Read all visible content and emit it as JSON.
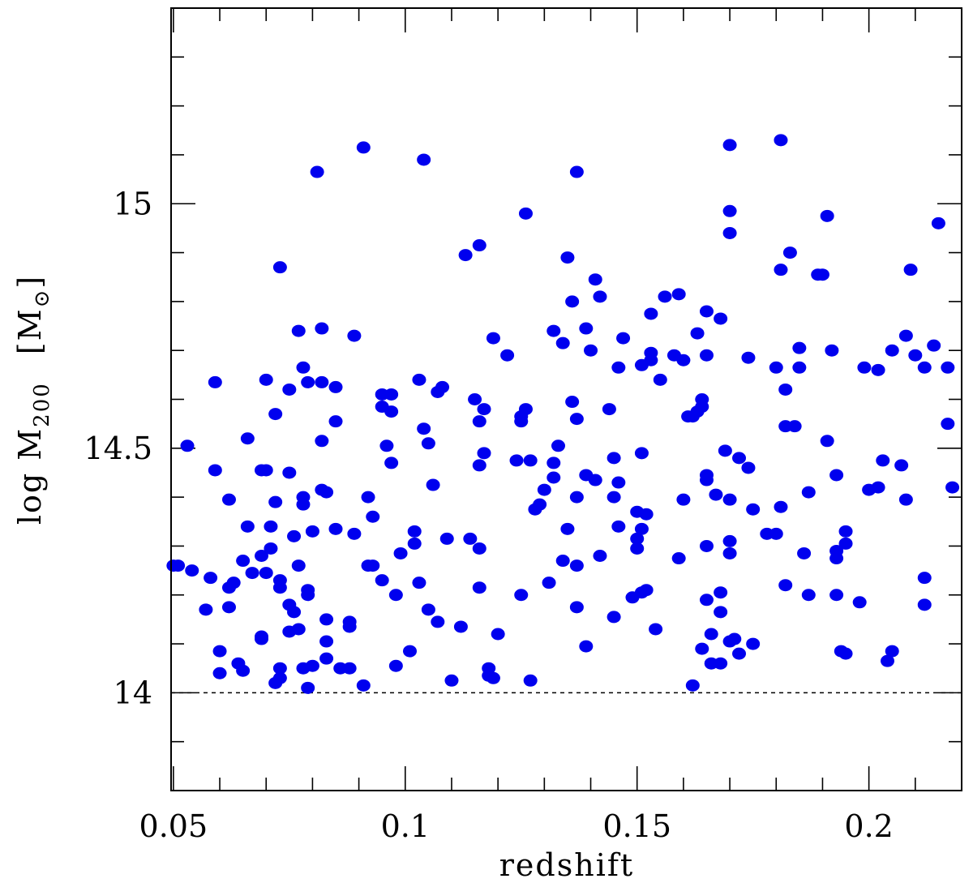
{
  "chart_data": {
    "type": "scatter",
    "xlabel": "redshift",
    "ylabel": {
      "prefix": "log  M",
      "subscript": "200",
      "unit_open": "[M",
      "unit_subscript": "⊙",
      "unit_close": "]"
    },
    "xlim": [
      0.0495,
      0.22
    ],
    "ylim": [
      13.8,
      15.4
    ],
    "x_ticks_major": [
      0.05,
      0.1,
      0.15,
      0.2
    ],
    "x_tick_labels": [
      "0.05",
      "0.1",
      "0.15",
      "0.2"
    ],
    "x_ticks_minor_step": 0.01,
    "y_ticks_major": [
      14.0,
      14.5,
      15.0
    ],
    "y_tick_labels": [
      "14",
      "14.5",
      "15"
    ],
    "y_ticks_minor_step": 0.1,
    "reference_line_y": 14.0,
    "point_color": "#0000ee",
    "points": [
      [
        0.05,
        14.26
      ],
      [
        0.051,
        14.26
      ],
      [
        0.053,
        14.505
      ],
      [
        0.054,
        14.25
      ],
      [
        0.057,
        14.17
      ],
      [
        0.058,
        14.235
      ],
      [
        0.059,
        14.635
      ],
      [
        0.059,
        14.455
      ],
      [
        0.06,
        14.085
      ],
      [
        0.06,
        14.04
      ],
      [
        0.062,
        14.395
      ],
      [
        0.062,
        14.175
      ],
      [
        0.062,
        14.215
      ],
      [
        0.063,
        14.225
      ],
      [
        0.064,
        14.06
      ],
      [
        0.065,
        14.045
      ],
      [
        0.065,
        14.27
      ],
      [
        0.066,
        14.52
      ],
      [
        0.066,
        14.34
      ],
      [
        0.067,
        14.245
      ],
      [
        0.069,
        14.11
      ],
      [
        0.069,
        14.115
      ],
      [
        0.069,
        14.455
      ],
      [
        0.069,
        14.28
      ],
      [
        0.07,
        14.245
      ],
      [
        0.07,
        14.455
      ],
      [
        0.07,
        14.64
      ],
      [
        0.071,
        14.295
      ],
      [
        0.071,
        14.34
      ],
      [
        0.072,
        14.57
      ],
      [
        0.072,
        14.39
      ],
      [
        0.072,
        14.02
      ],
      [
        0.073,
        14.03
      ],
      [
        0.073,
        14.05
      ],
      [
        0.073,
        14.23
      ],
      [
        0.073,
        14.215
      ],
      [
        0.073,
        14.87
      ],
      [
        0.075,
        14.18
      ],
      [
        0.075,
        14.125
      ],
      [
        0.075,
        14.45
      ],
      [
        0.075,
        14.62
      ],
      [
        0.076,
        14.165
      ],
      [
        0.076,
        14.32
      ],
      [
        0.077,
        14.26
      ],
      [
        0.077,
        14.13
      ],
      [
        0.077,
        14.74
      ],
      [
        0.078,
        14.05
      ],
      [
        0.078,
        14.385
      ],
      [
        0.078,
        14.665
      ],
      [
        0.078,
        14.4
      ],
      [
        0.079,
        14.21
      ],
      [
        0.079,
        14.635
      ],
      [
        0.079,
        14.01
      ],
      [
        0.079,
        14.2
      ],
      [
        0.08,
        14.055
      ],
      [
        0.08,
        14.33
      ],
      [
        0.081,
        15.065
      ],
      [
        0.082,
        14.515
      ],
      [
        0.082,
        14.415
      ],
      [
        0.082,
        14.745
      ],
      [
        0.082,
        14.635
      ],
      [
        0.083,
        14.41
      ],
      [
        0.083,
        14.15
      ],
      [
        0.083,
        14.105
      ],
      [
        0.083,
        14.07
      ],
      [
        0.085,
        14.625
      ],
      [
        0.085,
        14.555
      ],
      [
        0.085,
        14.335
      ],
      [
        0.086,
        14.05
      ],
      [
        0.088,
        14.145
      ],
      [
        0.088,
        14.135
      ],
      [
        0.088,
        14.05
      ],
      [
        0.089,
        14.325
      ],
      [
        0.089,
        14.73
      ],
      [
        0.091,
        15.115
      ],
      [
        0.091,
        14.015
      ],
      [
        0.092,
        14.26
      ],
      [
        0.092,
        14.4
      ],
      [
        0.093,
        14.36
      ],
      [
        0.093,
        14.26
      ],
      [
        0.095,
        14.23
      ],
      [
        0.095,
        14.61
      ],
      [
        0.095,
        14.585
      ],
      [
        0.096,
        14.505
      ],
      [
        0.097,
        14.575
      ],
      [
        0.097,
        14.47
      ],
      [
        0.097,
        14.61
      ],
      [
        0.098,
        14.2
      ],
      [
        0.098,
        14.055
      ],
      [
        0.099,
        14.285
      ],
      [
        0.101,
        14.085
      ],
      [
        0.102,
        14.33
      ],
      [
        0.102,
        14.305
      ],
      [
        0.103,
        14.225
      ],
      [
        0.103,
        14.64
      ],
      [
        0.104,
        15.09
      ],
      [
        0.104,
        14.54
      ],
      [
        0.105,
        14.51
      ],
      [
        0.105,
        14.17
      ],
      [
        0.106,
        14.425
      ],
      [
        0.107,
        14.145
      ],
      [
        0.107,
        14.615
      ],
      [
        0.108,
        14.625
      ],
      [
        0.109,
        14.315
      ],
      [
        0.11,
        14.025
      ],
      [
        0.112,
        14.135
      ],
      [
        0.113,
        14.895
      ],
      [
        0.114,
        14.315
      ],
      [
        0.115,
        14.6
      ],
      [
        0.116,
        14.915
      ],
      [
        0.116,
        14.555
      ],
      [
        0.116,
        14.465
      ],
      [
        0.116,
        14.295
      ],
      [
        0.116,
        14.215
      ],
      [
        0.117,
        14.58
      ],
      [
        0.117,
        14.49
      ],
      [
        0.118,
        14.05
      ],
      [
        0.118,
        14.035
      ],
      [
        0.119,
        14.03
      ],
      [
        0.119,
        14.725
      ],
      [
        0.12,
        14.12
      ],
      [
        0.122,
        14.69
      ],
      [
        0.124,
        14.475
      ],
      [
        0.125,
        14.565
      ],
      [
        0.125,
        14.555
      ],
      [
        0.125,
        14.2
      ],
      [
        0.126,
        14.98
      ],
      [
        0.126,
        14.58
      ],
      [
        0.127,
        14.475
      ],
      [
        0.127,
        14.025
      ],
      [
        0.128,
        14.375
      ],
      [
        0.129,
        14.385
      ],
      [
        0.13,
        14.415
      ],
      [
        0.131,
        14.225
      ],
      [
        0.132,
        14.74
      ],
      [
        0.132,
        14.47
      ],
      [
        0.132,
        14.44
      ],
      [
        0.133,
        14.505
      ],
      [
        0.134,
        14.715
      ],
      [
        0.134,
        14.27
      ],
      [
        0.135,
        14.89
      ],
      [
        0.135,
        14.335
      ],
      [
        0.136,
        14.8
      ],
      [
        0.136,
        14.595
      ],
      [
        0.137,
        15.065
      ],
      [
        0.137,
        14.56
      ],
      [
        0.137,
        14.4
      ],
      [
        0.137,
        14.26
      ],
      [
        0.137,
        14.175
      ],
      [
        0.139,
        14.745
      ],
      [
        0.139,
        14.445
      ],
      [
        0.139,
        14.095
      ],
      [
        0.14,
        14.7
      ],
      [
        0.141,
        14.845
      ],
      [
        0.141,
        14.435
      ],
      [
        0.142,
        14.81
      ],
      [
        0.142,
        14.28
      ],
      [
        0.144,
        14.58
      ],
      [
        0.145,
        14.48
      ],
      [
        0.145,
        14.4
      ],
      [
        0.145,
        14.155
      ],
      [
        0.146,
        14.665
      ],
      [
        0.146,
        14.43
      ],
      [
        0.146,
        14.34
      ],
      [
        0.147,
        14.725
      ],
      [
        0.149,
        14.195
      ],
      [
        0.15,
        14.37
      ],
      [
        0.15,
        14.315
      ],
      [
        0.15,
        14.295
      ],
      [
        0.151,
        14.67
      ],
      [
        0.151,
        14.49
      ],
      [
        0.151,
        14.335
      ],
      [
        0.151,
        14.205
      ],
      [
        0.152,
        14.365
      ],
      [
        0.152,
        14.21
      ],
      [
        0.153,
        14.775
      ],
      [
        0.153,
        14.695
      ],
      [
        0.153,
        14.68
      ],
      [
        0.154,
        14.13
      ],
      [
        0.155,
        14.64
      ],
      [
        0.156,
        14.81
      ],
      [
        0.158,
        14.69
      ],
      [
        0.159,
        14.815
      ],
      [
        0.159,
        14.275
      ],
      [
        0.16,
        14.68
      ],
      [
        0.16,
        14.395
      ],
      [
        0.161,
        14.565
      ],
      [
        0.162,
        14.565
      ],
      [
        0.162,
        14.015
      ],
      [
        0.163,
        14.575
      ],
      [
        0.163,
        14.735
      ],
      [
        0.164,
        14.6
      ],
      [
        0.164,
        14.585
      ],
      [
        0.164,
        14.09
      ],
      [
        0.165,
        14.78
      ],
      [
        0.165,
        14.69
      ],
      [
        0.165,
        14.445
      ],
      [
        0.165,
        14.435
      ],
      [
        0.165,
        14.3
      ],
      [
        0.165,
        14.19
      ],
      [
        0.166,
        14.12
      ],
      [
        0.166,
        14.06
      ],
      [
        0.167,
        14.405
      ],
      [
        0.168,
        14.765
      ],
      [
        0.168,
        14.205
      ],
      [
        0.168,
        14.165
      ],
      [
        0.168,
        14.06
      ],
      [
        0.169,
        14.495
      ],
      [
        0.17,
        15.12
      ],
      [
        0.17,
        14.985
      ],
      [
        0.17,
        14.94
      ],
      [
        0.17,
        14.395
      ],
      [
        0.17,
        14.31
      ],
      [
        0.17,
        14.285
      ],
      [
        0.17,
        14.105
      ],
      [
        0.171,
        14.11
      ],
      [
        0.172,
        14.48
      ],
      [
        0.172,
        14.08
      ],
      [
        0.174,
        14.685
      ],
      [
        0.174,
        14.46
      ],
      [
        0.175,
        14.375
      ],
      [
        0.175,
        14.1
      ],
      [
        0.178,
        14.325
      ],
      [
        0.18,
        14.665
      ],
      [
        0.18,
        14.325
      ],
      [
        0.181,
        15.13
      ],
      [
        0.181,
        14.865
      ],
      [
        0.181,
        14.38
      ],
      [
        0.182,
        14.62
      ],
      [
        0.182,
        14.545
      ],
      [
        0.182,
        14.22
      ],
      [
        0.183,
        14.9
      ],
      [
        0.184,
        14.545
      ],
      [
        0.185,
        14.705
      ],
      [
        0.185,
        14.665
      ],
      [
        0.186,
        14.285
      ],
      [
        0.187,
        14.41
      ],
      [
        0.187,
        14.2
      ],
      [
        0.189,
        14.855
      ],
      [
        0.19,
        14.855
      ],
      [
        0.191,
        14.975
      ],
      [
        0.191,
        14.515
      ],
      [
        0.192,
        14.7
      ],
      [
        0.193,
        14.445
      ],
      [
        0.193,
        14.29
      ],
      [
        0.193,
        14.275
      ],
      [
        0.193,
        14.2
      ],
      [
        0.194,
        14.085
      ],
      [
        0.195,
        14.08
      ],
      [
        0.195,
        14.33
      ],
      [
        0.195,
        14.305
      ],
      [
        0.198,
        14.185
      ],
      [
        0.199,
        14.665
      ],
      [
        0.2,
        14.415
      ],
      [
        0.202,
        14.66
      ],
      [
        0.202,
        14.42
      ],
      [
        0.203,
        14.475
      ],
      [
        0.204,
        14.065
      ],
      [
        0.205,
        14.085
      ],
      [
        0.205,
        14.7
      ],
      [
        0.207,
        14.465
      ],
      [
        0.208,
        14.73
      ],
      [
        0.208,
        14.395
      ],
      [
        0.209,
        14.865
      ],
      [
        0.21,
        14.69
      ],
      [
        0.212,
        14.665
      ],
      [
        0.212,
        14.235
      ],
      [
        0.212,
        14.18
      ],
      [
        0.214,
        14.71
      ],
      [
        0.215,
        14.96
      ],
      [
        0.217,
        14.665
      ],
      [
        0.217,
        14.55
      ],
      [
        0.218,
        14.42
      ]
    ]
  }
}
